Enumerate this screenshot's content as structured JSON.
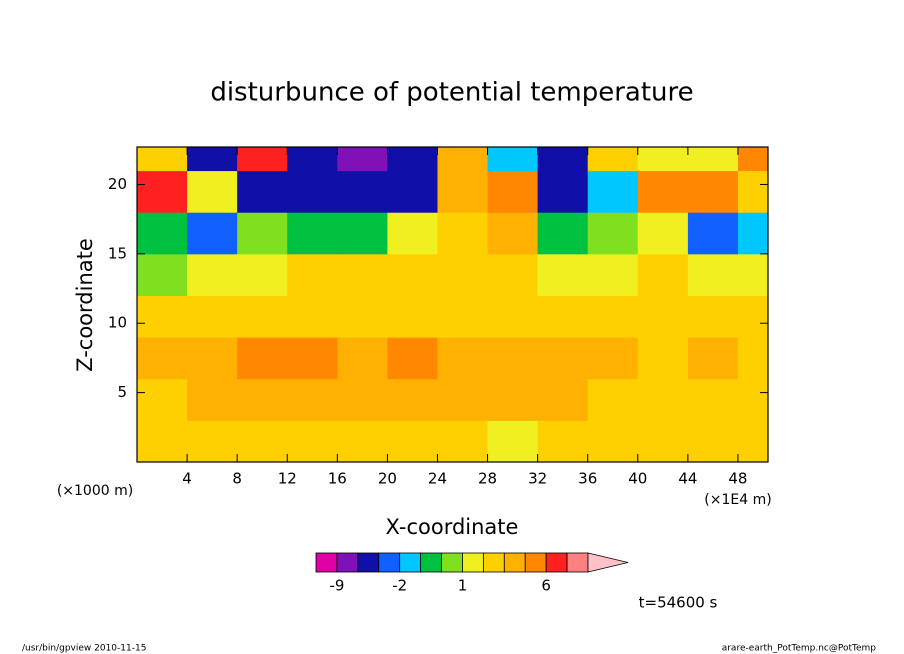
{
  "chart_data": {
    "type": "contour",
    "title": "disturbunce of potential temperature",
    "x_label": "X-coordinate",
    "y_label": "Z-coordinate",
    "x_offset_unit": "(×1000 m)",
    "x_scale_unit": "(×1E4 m)",
    "time_label": "t=54600 s",
    "footer_left": "/usr/bin/gpview  2010-11-15",
    "footer_right": "arare-earth_PotTemp.nc@PotTemp",
    "xlim": [
      0,
      50.4
    ],
    "ylim": [
      0,
      22.7
    ],
    "xticks": [
      4,
      8,
      12,
      16,
      20,
      24,
      28,
      32,
      36,
      40,
      44,
      48
    ],
    "yticks": [
      5,
      10,
      15,
      20
    ],
    "x": [
      2,
      6,
      10,
      14,
      18,
      22,
      26,
      30,
      34,
      38,
      42,
      46,
      50
    ],
    "y": [
      1.5,
      4.5,
      7.5,
      10.5,
      13.5,
      16.5,
      19.5,
      22.5
    ],
    "z": [
      [
        2.5,
        2.5,
        2.5,
        2.5,
        2.5,
        2.5,
        2.5,
        1.5,
        2.5,
        2.5,
        2.5,
        2.5,
        2.5
      ],
      [
        2.5,
        3.5,
        3.5,
        3.5,
        3.5,
        3.5,
        3.5,
        3.5,
        3.5,
        2.5,
        2.5,
        2.5,
        2.5
      ],
      [
        3.5,
        3.5,
        4.5,
        4.5,
        3.5,
        4.5,
        3.5,
        3.5,
        3.5,
        3.5,
        2.5,
        3.5,
        2.5
      ],
      [
        2.5,
        2.5,
        2.5,
        2.5,
        2.5,
        2.5,
        2.5,
        2.5,
        2.5,
        2.5,
        2.5,
        2.5,
        2.5
      ],
      [
        0.5,
        1.5,
        1.5,
        2.5,
        2.5,
        2.5,
        2.5,
        2.5,
        1.5,
        1.5,
        2.5,
        1.5,
        1.5
      ],
      [
        -0.5,
        -2.5,
        0.5,
        -0.5,
        -0.5,
        1.5,
        2.5,
        3.5,
        -0.5,
        0.5,
        1.5,
        -2.5,
        -1.5
      ],
      [
        7,
        1.5,
        -4,
        -4,
        -5,
        -6,
        3.5,
        5,
        -4,
        -1.5,
        5,
        5,
        2.5
      ],
      [
        2.5,
        -4,
        7,
        -5,
        -7,
        -5,
        3.5,
        -1.5,
        -5,
        2.5,
        1.5,
        1.5,
        5
      ]
    ],
    "levels": [
      -12,
      -9,
      -6,
      -3,
      -2,
      -1,
      0,
      1,
      2,
      3,
      4,
      6,
      9,
      12
    ],
    "colors": [
      "#e000a8",
      "#8010b8",
      "#1010a8",
      "#1060ff",
      "#00c8ff",
      "#00c040",
      "#80e020",
      "#f0f020",
      "#ffd000",
      "#ffb000",
      "#ff8800",
      "#ff2020",
      "#ff8080",
      "#ffc0c8"
    ],
    "colorbar_ticks": [
      -9,
      -2,
      1,
      6
    ]
  }
}
